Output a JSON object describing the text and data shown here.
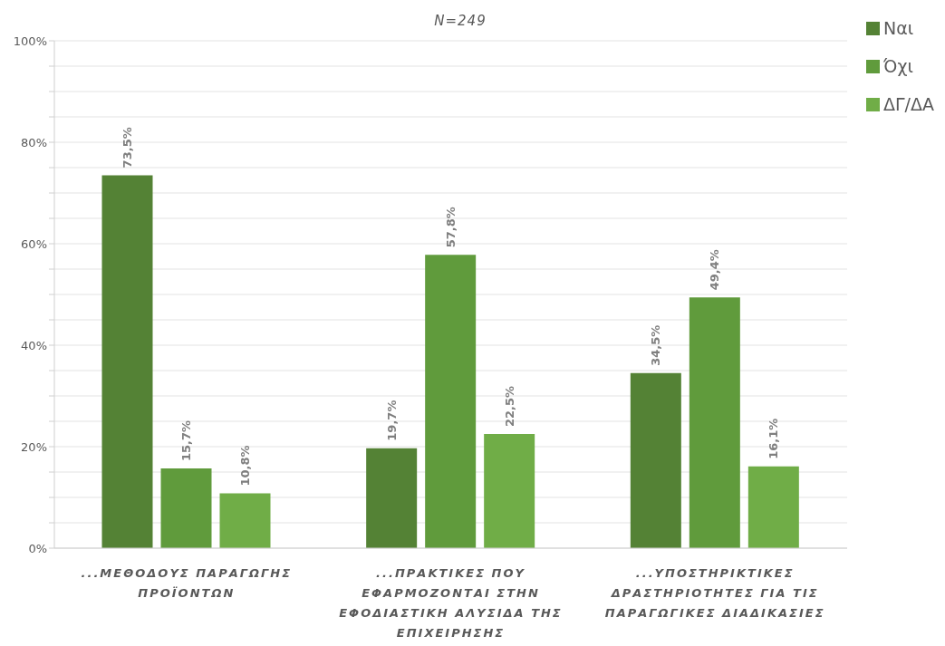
{
  "chart_data": {
    "type": "bar",
    "title": "N=249",
    "categories": [
      "...ΜΕΘΟΔΟΥΣ ΠΑΡΑΓΩΓΗΣ ΠΡΟΪΟΝΤΩΝ",
      "...ΠΡΑΚΤΙΚΕΣ ΠΟΥ ΕΦΑΡΜΟΖΟΝΤΑΙ ΣΤΗΝ ΕΦΟΔΙΑΣΤΙΚΗ ΑΛΥΣΙΔΑ ΤΗΣ ΕΠΙΧΕΙΡΗΣΗΣ",
      "...ΥΠΟΣΤΗΡΙΚΤΙΚΕΣ ΔΡΑΣΤΗΡΙΟΤΗΤΕΣ ΓΙΑ ΤΙΣ ΠΑΡΑΓΩΓΙΚΕΣ ΔΙΑΔΙΚΑΣΙΕΣ"
    ],
    "series": [
      {
        "name": "Ναι",
        "color": "#548235",
        "values": [
          73.5,
          19.7,
          34.5
        ],
        "value_labels": [
          "73,5%",
          "19,7%",
          "34,5%"
        ]
      },
      {
        "name": "Όχι",
        "color": "#609b3c",
        "values": [
          15.7,
          57.8,
          49.4
        ],
        "value_labels": [
          "15,7%",
          "57,8%",
          "49,4%"
        ]
      },
      {
        "name": "ΔΓ/ΔΑ",
        "color": "#70ad47",
        "values": [
          10.8,
          22.5,
          16.1
        ],
        "value_labels": [
          "10,8%",
          "22,5%",
          "16,1%"
        ]
      }
    ],
    "ylim": [
      0,
      100
    ],
    "yticks": [
      {
        "value": 0,
        "label": "0%"
      },
      {
        "value": 5,
        "label": null
      },
      {
        "value": 10,
        "label": null
      },
      {
        "value": 15,
        "label": null
      },
      {
        "value": 20,
        "label": "20%"
      },
      {
        "value": 25,
        "label": null
      },
      {
        "value": 30,
        "label": null
      },
      {
        "value": 35,
        "label": null
      },
      {
        "value": 40,
        "label": "40%"
      },
      {
        "value": 45,
        "label": null
      },
      {
        "value": 50,
        "label": null
      },
      {
        "value": 55,
        "label": null
      },
      {
        "value": 60,
        "label": "60%"
      },
      {
        "value": 65,
        "label": null
      },
      {
        "value": 70,
        "label": null
      },
      {
        "value": 75,
        "label": null
      },
      {
        "value": 80,
        "label": "80%"
      },
      {
        "value": 85,
        "label": null
      },
      {
        "value": 90,
        "label": null
      },
      {
        "value": 95,
        "label": null
      },
      {
        "value": 100,
        "label": "100%"
      }
    ],
    "grid": "y",
    "legend": "top right"
  }
}
